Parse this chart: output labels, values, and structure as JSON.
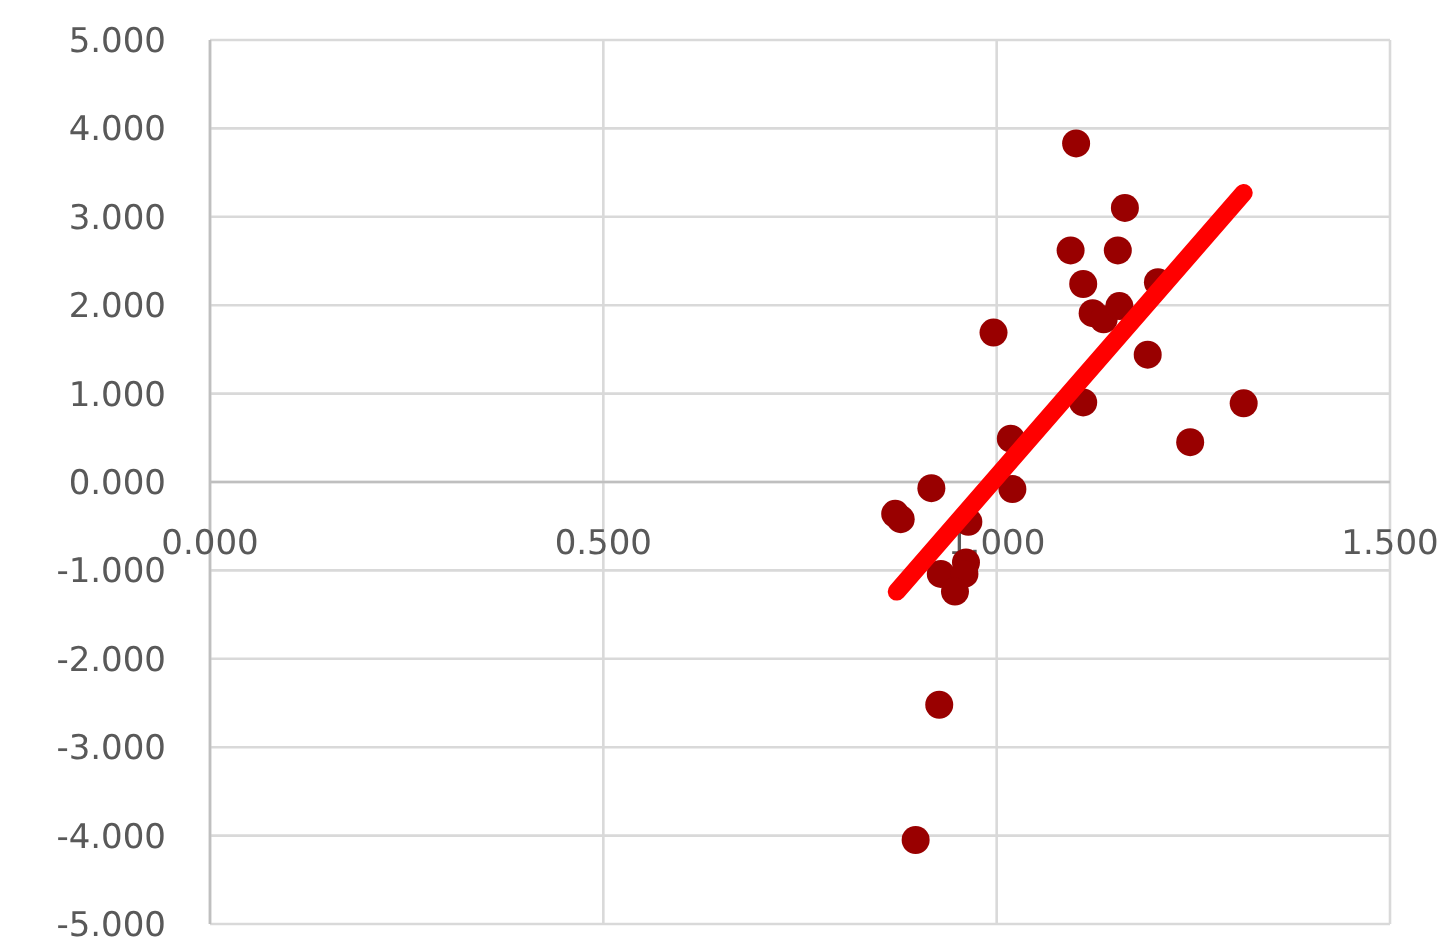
{
  "chart_data": {
    "type": "scatter",
    "xlim": [
      0,
      1.5
    ],
    "ylim": [
      -5,
      5
    ],
    "xticks": [
      {
        "value": 0,
        "label": "0.000"
      },
      {
        "value": 0.5,
        "label": "0.500"
      },
      {
        "value": 1,
        "label": "1.000"
      },
      {
        "value": 1.5,
        "label": "1.500"
      }
    ],
    "yticks": [
      {
        "value": -5,
        "label": "-5.000"
      },
      {
        "value": -4,
        "label": "-4.000"
      },
      {
        "value": -3,
        "label": "-3.000"
      },
      {
        "value": -2,
        "label": "-2.000"
      },
      {
        "value": -1,
        "label": "-1.000"
      },
      {
        "value": 0,
        "label": "0.000"
      },
      {
        "value": 1,
        "label": "1.000"
      },
      {
        "value": 2,
        "label": "2.000"
      },
      {
        "value": 3,
        "label": "3.000"
      },
      {
        "value": 4,
        "label": "4.000"
      },
      {
        "value": 5,
        "label": "5.000"
      }
    ],
    "grid": true,
    "series": [
      {
        "marker": "circle",
        "color": "#990000",
        "x": [
          1.101,
          1.163,
          1.094,
          1.154,
          1.11,
          1.205,
          1.122,
          1.136,
          1.156,
          0.996,
          1.192,
          1.11,
          1.314,
          1.246,
          1.018,
          1.02,
          0.917,
          0.871,
          0.878,
          0.964,
          0.961,
          0.929,
          0.959,
          0.947,
          0.927,
          0.897
        ],
        "values": [
          3.83,
          3.1,
          2.62,
          2.62,
          2.24,
          2.26,
          1.91,
          1.84,
          1.99,
          1.69,
          1.44,
          0.9,
          0.89,
          0.45,
          0.49,
          -0.08,
          -0.07,
          -0.36,
          -0.42,
          -0.45,
          -0.91,
          -1.04,
          -1.04,
          -1.24,
          -2.52,
          -4.05
        ]
      },
      {
        "type": "line",
        "color": "#ff0000",
        "x": [
          0.873,
          1.314
        ],
        "values": [
          -1.24,
          3.27
        ]
      }
    ]
  }
}
